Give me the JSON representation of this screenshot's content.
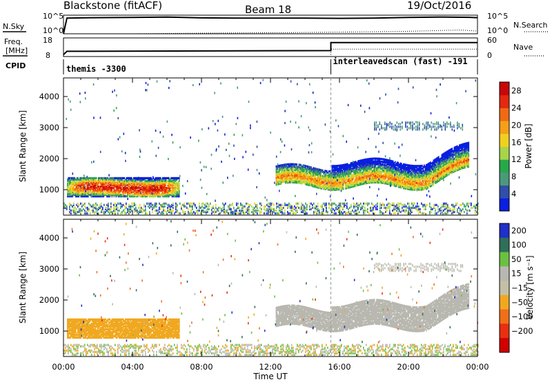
{
  "header": {
    "station": "Blackstone (fitACF)",
    "beam": "Beam 18",
    "date": "19/Oct/2016"
  },
  "noise_panel": {
    "left_label": "N.Sky",
    "left_ticks": [
      "10^5",
      "10^0"
    ],
    "right_ticks": [
      "10^5",
      "10^0"
    ],
    "right_label": "N.Search"
  },
  "freq_panel": {
    "left_label_1": "Freq.",
    "left_label_2": "[MHz]",
    "left_ticks": [
      "18",
      "8"
    ],
    "right_ticks": [
      "60",
      "0"
    ],
    "right_label": "Nave",
    "cpid_label": "CPID"
  },
  "cpid_panel": {
    "segments": [
      {
        "label": "themis -3300",
        "start_hour": 0
      },
      {
        "label": "interleavedscan (fast) -191",
        "start_hour": 15.5
      }
    ]
  },
  "colors": {
    "power": [
      "#0a1fe0",
      "#2f4fa8",
      "#4a9a7a",
      "#27a84a",
      "#a8d44a",
      "#f0d020",
      "#f5a018",
      "#f06a14",
      "#e42810",
      "#c80808"
    ],
    "velocity": [
      "#2030c8",
      "#2f6f5a",
      "#6cc040",
      "#b8b8b0",
      "#c4c0a8",
      "#f0a820",
      "#f07018",
      "#e83010",
      "#d00000"
    ]
  },
  "chart_data": [
    {
      "type": "line",
      "title": "",
      "series": [
        {
          "name": "N.Sky",
          "x": [
            0,
            0.2,
            2,
            4,
            6,
            8,
            10,
            12,
            14,
            16,
            18,
            20,
            22,
            23.5,
            24
          ],
          "values": [
            1,
            30000,
            40000,
            45000,
            60000,
            35000,
            30000,
            28000,
            30000,
            25000,
            30000,
            45000,
            60000,
            50000,
            40000
          ]
        },
        {
          "name": "N.Search",
          "x": [
            0,
            4,
            8,
            12,
            16,
            20,
            23,
            24
          ],
          "values": [
            1,
            1,
            1.5,
            2,
            3,
            5,
            12,
            6
          ]
        }
      ]
    },
    {
      "type": "line",
      "title": "",
      "series": [
        {
          "name": "Freq. [MHz]",
          "x": [
            0,
            0.2,
            15.5,
            15.5,
            24
          ],
          "values": [
            9,
            10.8,
            11.2,
            15.5,
            15.5
          ]
        },
        {
          "name": "Nave",
          "x": [
            0,
            15.5,
            15.5,
            24
          ],
          "values": [
            0,
            0,
            24,
            24
          ]
        }
      ]
    },
    {
      "type": "heatmap",
      "title": "",
      "xlabel": "",
      "ylabel": "Slant Range [km]",
      "xlim": [
        0,
        24
      ],
      "ylim": [
        180,
        4600
      ],
      "yticks": [
        1000,
        2000,
        3000,
        4000
      ],
      "colorbar": {
        "label": "Power [dB]",
        "ticks": [
          4,
          8,
          12,
          16,
          20,
          24,
          28
        ],
        "range": [
          0,
          30
        ]
      },
      "features": [
        {
          "name": "E-region echo band",
          "hours": [
            0.2,
            6.7
          ],
          "range_km": [
            750,
            1350
          ],
          "peak_db": 26
        },
        {
          "name": "afternoon F-region band",
          "hours": [
            12.3,
            23.5
          ],
          "range_km": [
            1050,
            1900
          ],
          "peak_db": 22
        },
        {
          "name": "evening high-range band",
          "hours": [
            18,
            23.2
          ],
          "range_km": [
            2900,
            3150
          ],
          "peak_db": 6
        },
        {
          "name": "near-range clutter",
          "hours": [
            0,
            24
          ],
          "range_km": [
            200,
            500
          ],
          "peak_db": 14
        }
      ]
    },
    {
      "type": "heatmap",
      "title": "",
      "xlabel": "Time UT",
      "ylabel": "Slant Range [km]",
      "xlim": [
        0,
        24
      ],
      "ylim": [
        180,
        4600
      ],
      "yticks": [
        1000,
        2000,
        3000,
        4000
      ],
      "xticks": [
        "00:00",
        "04:00",
        "08:00",
        "12:00",
        "16:00",
        "20:00",
        "00:00"
      ],
      "colorbar": {
        "label": "Velocity [m s⁻¹]",
        "ticks": [
          200,
          100,
          50,
          15,
          -15,
          -50,
          -100,
          -200
        ]
      },
      "features": [
        {
          "name": "morning band",
          "hours": [
            0.2,
            6.7
          ],
          "range_km": [
            750,
            1350
          ],
          "velocity": -60
        },
        {
          "name": "afternoon band",
          "hours": [
            12.3,
            23.5
          ],
          "range_km": [
            1050,
            1950
          ],
          "velocity": 0
        }
      ]
    }
  ],
  "axes": {
    "slant_range_label": "Slant Range [km]",
    "time_label": "Time UT",
    "power_label": "Power [dB]",
    "velocity_label": "Velocity [m s⁻¹]"
  }
}
